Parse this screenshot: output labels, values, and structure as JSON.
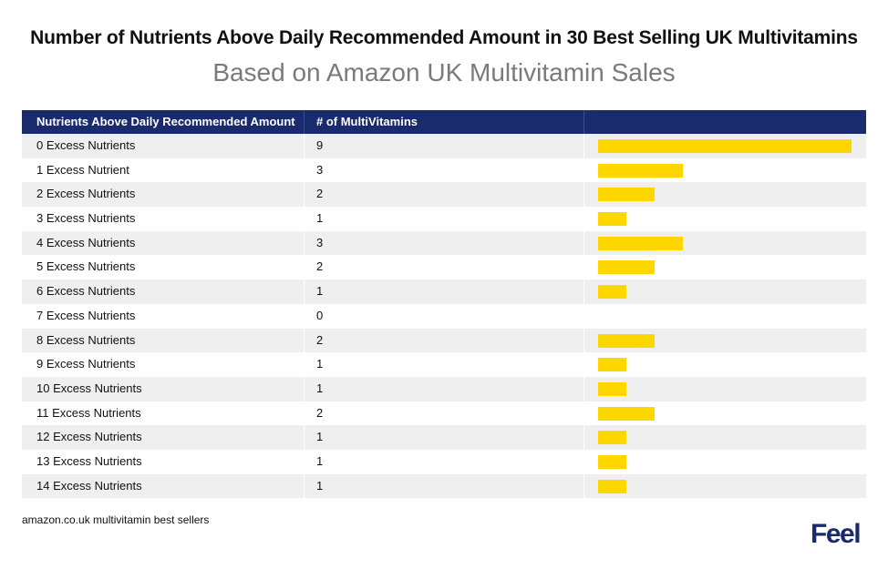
{
  "chart_data": {
    "type": "table",
    "title": "Number of Nutrients Above Daily Recommended Amount in 30 Best Selling UK Multivitamins",
    "subtitle": "Based on Amazon UK Multivitamin Sales",
    "columns": [
      "Nutrients Above Daily Recommended Amount",
      "# of MultiVitamins"
    ],
    "rows": [
      {
        "label": "0 Excess Nutrients",
        "value": 9
      },
      {
        "label": "1 Excess Nutrient",
        "value": 3
      },
      {
        "label": "2 Excess Nutrients",
        "value": 2
      },
      {
        "label": "3 Excess Nutrients",
        "value": 1
      },
      {
        "label": "4 Excess Nutrients",
        "value": 3
      },
      {
        "label": "5 Excess Nutrients",
        "value": 2
      },
      {
        "label": "6 Excess Nutrients",
        "value": 1
      },
      {
        "label": "7 Excess Nutrients",
        "value": 0
      },
      {
        "label": "8 Excess Nutrients",
        "value": 2
      },
      {
        "label": "9 Excess Nutrients",
        "value": 1
      },
      {
        "label": "10 Excess Nutrients",
        "value": 1
      },
      {
        "label": "11 Excess Nutrients",
        "value": 2
      },
      {
        "label": "12 Excess Nutrients",
        "value": 1
      },
      {
        "label": "13 Excess Nutrients",
        "value": 1
      },
      {
        "label": "14 Excess Nutrients",
        "value": 1
      }
    ],
    "bar_max": 9,
    "colors": {
      "header": "#1a2b6d",
      "bar": "#ffd700",
      "stripe": "#efefef"
    }
  },
  "footnote": "amazon.co.uk multivitamin best sellers",
  "logo": "Feel"
}
